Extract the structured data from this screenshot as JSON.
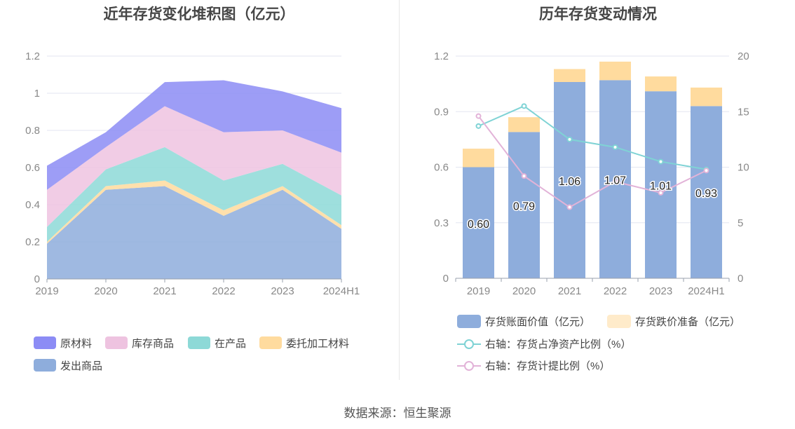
{
  "chart_data": [
    {
      "type": "area",
      "stacked": true,
      "title": "近年存货变化堆积图（亿元）",
      "categories": [
        "2019",
        "2020",
        "2021",
        "2022",
        "2023",
        "2024H1"
      ],
      "y_ticks": [
        "0",
        "0.2",
        "0.4",
        "0.6",
        "0.8",
        "1",
        "1.2"
      ],
      "ylim": [
        0,
        1.2
      ],
      "grid": true,
      "legend_position": "bottom",
      "series": [
        {
          "name": "发出商品",
          "color": "#8eaddc",
          "values": [
            0.19,
            0.48,
            0.5,
            0.34,
            0.48,
            0.27
          ]
        },
        {
          "name": "委托加工材料",
          "color": "#ffdb9e",
          "values": [
            0.01,
            0.02,
            0.03,
            0.03,
            0.02,
            0.02
          ]
        },
        {
          "name": "在产品",
          "color": "#8dd9d7",
          "values": [
            0.08,
            0.09,
            0.18,
            0.16,
            0.12,
            0.16
          ]
        },
        {
          "name": "库存商品",
          "color": "#eec3e0",
          "values": [
            0.2,
            0.12,
            0.22,
            0.26,
            0.18,
            0.23
          ]
        },
        {
          "name": "原材料",
          "color": "#8c8cf5",
          "values": [
            0.13,
            0.08,
            0.13,
            0.28,
            0.21,
            0.24
          ]
        }
      ],
      "legend_order": [
        "原材料",
        "库存商品",
        "在产品",
        "委托加工材料",
        "发出商品"
      ]
    },
    {
      "type": "bar",
      "stacked": true,
      "title": "历年存货变动情况",
      "categories": [
        "2019",
        "2020",
        "2021",
        "2022",
        "2023",
        "2024H1"
      ],
      "y_left_ticks": [
        "0",
        "0.3",
        "0.6",
        "0.9",
        "1.2"
      ],
      "ylim_left": [
        0,
        1.2
      ],
      "y_right_ticks": [
        "0",
        "5",
        "10",
        "15",
        "20"
      ],
      "ylim_right": [
        0,
        20
      ],
      "grid": true,
      "legend_position": "bottom",
      "bars": [
        {
          "name": "存货账面价值（亿元）",
          "color": "#8eaddc",
          "values": [
            0.6,
            0.79,
            1.06,
            1.07,
            1.01,
            0.93
          ],
          "labels": [
            "0.60",
            "0.79",
            "1.06",
            "1.07",
            "1.01",
            "0.93"
          ]
        },
        {
          "name": "存货跌价准备（亿元）",
          "color": "#ffdb9e",
          "values": [
            0.1,
            0.08,
            0.07,
            0.1,
            0.08,
            0.1
          ]
        }
      ],
      "lines": [
        {
          "name": "右轴：存货占净资产比例（%）",
          "color": "#7fd3d5",
          "axis": "right",
          "values": [
            13.7,
            15.5,
            12.5,
            11.8,
            10.5,
            9.8
          ]
        },
        {
          "name": "右轴：存货计提比例（%）",
          "color": "#e2b3d8",
          "axis": "right",
          "values": [
            14.6,
            9.2,
            6.4,
            8.7,
            7.7,
            9.7
          ]
        }
      ]
    }
  ],
  "source": "数据来源：恒生聚源"
}
